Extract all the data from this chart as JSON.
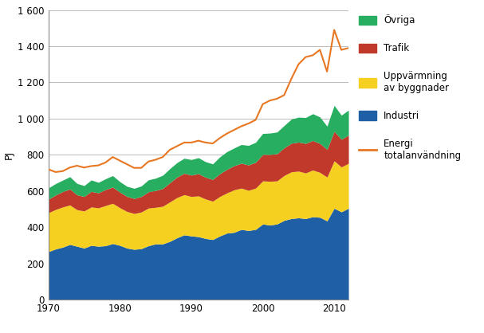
{
  "years": [
    1970,
    1971,
    1972,
    1973,
    1974,
    1975,
    1976,
    1977,
    1978,
    1979,
    1980,
    1981,
    1982,
    1983,
    1984,
    1985,
    1986,
    1987,
    1988,
    1989,
    1990,
    1991,
    1992,
    1993,
    1994,
    1995,
    1996,
    1997,
    1998,
    1999,
    2000,
    2001,
    2002,
    2003,
    2004,
    2005,
    2006,
    2007,
    2008,
    2009,
    2010,
    2011,
    2012
  ],
  "industri": [
    265,
    280,
    290,
    305,
    295,
    285,
    300,
    295,
    298,
    310,
    300,
    285,
    278,
    282,
    298,
    308,
    308,
    322,
    342,
    358,
    352,
    348,
    338,
    332,
    352,
    368,
    372,
    388,
    382,
    388,
    418,
    412,
    418,
    438,
    448,
    452,
    448,
    458,
    455,
    435,
    505,
    485,
    505
  ],
  "uppvarmning": [
    215,
    218,
    222,
    218,
    202,
    205,
    212,
    212,
    222,
    222,
    208,
    202,
    198,
    202,
    208,
    202,
    208,
    218,
    222,
    222,
    218,
    225,
    218,
    212,
    218,
    222,
    235,
    228,
    222,
    228,
    238,
    242,
    238,
    248,
    258,
    258,
    252,
    258,
    248,
    242,
    262,
    248,
    248
  ],
  "trafik": [
    75,
    80,
    85,
    88,
    82,
    80,
    86,
    83,
    88,
    90,
    86,
    83,
    83,
    86,
    90,
    93,
    98,
    106,
    113,
    118,
    118,
    123,
    120,
    120,
    126,
    130,
    133,
    138,
    140,
    143,
    146,
    148,
    150,
    153,
    158,
    160,
    163,
    163,
    160,
    153,
    163,
    153,
    156
  ],
  "ovriga": [
    62,
    63,
    63,
    68,
    63,
    60,
    63,
    58,
    60,
    63,
    58,
    56,
    56,
    58,
    66,
    68,
    73,
    78,
    80,
    83,
    86,
    88,
    86,
    86,
    93,
    98,
    98,
    103,
    108,
    110,
    116,
    118,
    120,
    123,
    133,
    138,
    143,
    148,
    146,
    128,
    143,
    133,
    138
  ],
  "energi_totalanvandning": [
    720,
    705,
    710,
    730,
    740,
    730,
    738,
    742,
    758,
    788,
    768,
    748,
    728,
    728,
    763,
    773,
    788,
    828,
    848,
    868,
    868,
    878,
    868,
    863,
    893,
    918,
    938,
    958,
    973,
    993,
    1080,
    1100,
    1110,
    1130,
    1220,
    1300,
    1340,
    1350,
    1380,
    1260,
    1490,
    1380,
    1390
  ],
  "industri_color": "#1f5fa6",
  "uppvarmning_color": "#f5d020",
  "trafik_color": "#c0392b",
  "ovriga_color": "#27ae60",
  "energi_color": "#e87722",
  "ylabel": "PJ",
  "ylim": [
    0,
    1600
  ],
  "yticks": [
    0,
    200,
    400,
    600,
    800,
    1000,
    1200,
    1400,
    1600
  ],
  "ytick_labels": [
    "0",
    "200",
    "400",
    "600",
    "800",
    "1 000",
    "1 200",
    "1 400",
    "1 600"
  ],
  "xticks": [
    1970,
    1980,
    1990,
    2000,
    2010
  ],
  "legend_ovriga": "Övriga",
  "legend_trafik": "Trafik",
  "legend_uppvarmning": "Uppvärmning\nav byggnader",
  "legend_industri": "Industri",
  "legend_energi": "Energi\ntotalanvändning"
}
